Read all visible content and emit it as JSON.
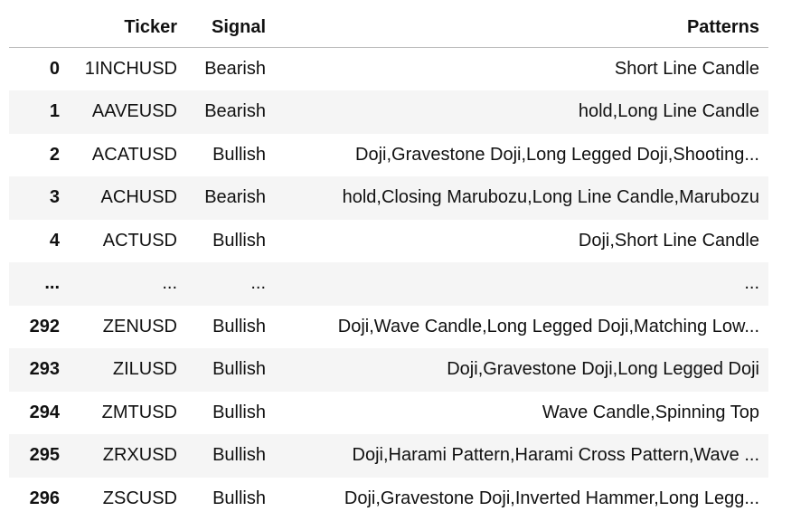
{
  "table": {
    "columns": {
      "index": "",
      "ticker": "Ticker",
      "signal": "Signal",
      "patterns": "Patterns"
    },
    "rows": [
      {
        "index": "0",
        "ticker": "1INCHUSD",
        "signal": "Bearish",
        "patterns": "Short Line Candle"
      },
      {
        "index": "1",
        "ticker": "AAVEUSD",
        "signal": "Bearish",
        "patterns": "hold,Long Line Candle"
      },
      {
        "index": "2",
        "ticker": "ACATUSD",
        "signal": "Bullish",
        "patterns": "Doji,Gravestone Doji,Long Legged Doji,Shooting..."
      },
      {
        "index": "3",
        "ticker": "ACHUSD",
        "signal": "Bearish",
        "patterns": "hold,Closing Marubozu,Long Line Candle,Marubozu"
      },
      {
        "index": "4",
        "ticker": "ACTUSD",
        "signal": "Bullish",
        "patterns": "Doji,Short Line Candle"
      },
      {
        "index": "...",
        "ticker": "...",
        "signal": "...",
        "patterns": "..."
      },
      {
        "index": "292",
        "ticker": "ZENUSD",
        "signal": "Bullish",
        "patterns": "Doji,Wave Candle,Long Legged Doji,Matching Low..."
      },
      {
        "index": "293",
        "ticker": "ZILUSD",
        "signal": "Bullish",
        "patterns": "Doji,Gravestone Doji,Long Legged Doji"
      },
      {
        "index": "294",
        "ticker": "ZMTUSD",
        "signal": "Bullish",
        "patterns": "Wave Candle,Spinning Top"
      },
      {
        "index": "295",
        "ticker": "ZRXUSD",
        "signal": "Bullish",
        "patterns": "Doji,Harami Pattern,Harami Cross Pattern,Wave ..."
      },
      {
        "index": "296",
        "ticker": "ZSCUSD",
        "signal": "Bullish",
        "patterns": "Doji,Gravestone Doji,Inverted Hammer,Long Legg..."
      }
    ]
  },
  "colors": {
    "stripe": "#f5f5f5",
    "border": "#bdbdbd",
    "text": "#111111"
  }
}
